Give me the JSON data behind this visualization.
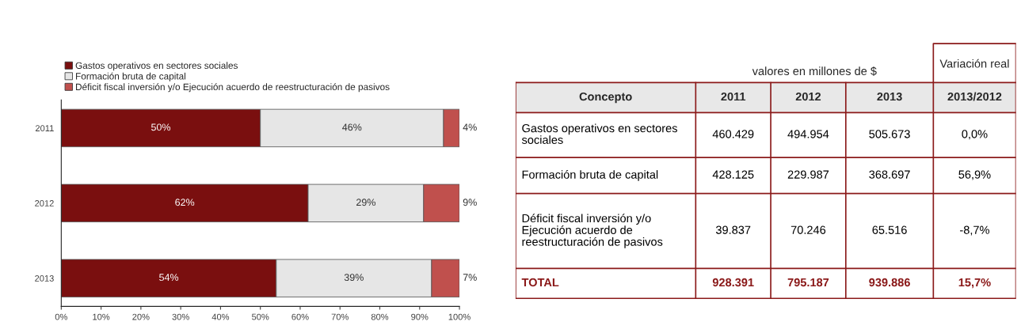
{
  "chart_data": [
    {
      "type": "bar",
      "orientation": "horizontal",
      "stacked": true,
      "categories": [
        "2011",
        "2012",
        "2013"
      ],
      "series": [
        {
          "name": "Gastos operativos en sectores sociales",
          "color": "#7a0f0f",
          "values": [
            50,
            62,
            54
          ],
          "value_labels": [
            "50%",
            "62%",
            "54%"
          ]
        },
        {
          "name": "Formación bruta de capital",
          "color": "#e6e6e6",
          "values": [
            46,
            29,
            39
          ],
          "value_labels": [
            "46%",
            "29%",
            "39%"
          ]
        },
        {
          "name": "Déficit fiscal inversión y/o Ejecución acuerdo de reestructuración de pasivos",
          "color": "#c0504d",
          "values": [
            4,
            9,
            7
          ],
          "value_labels": [
            "4%",
            "9%",
            "7%"
          ]
        }
      ],
      "xlim": [
        0,
        100
      ],
      "xticks": [
        {
          "value": 0,
          "label": "0%"
        },
        {
          "value": 10,
          "label": "10%"
        },
        {
          "value": 20,
          "label": "20%"
        },
        {
          "value": 30,
          "label": "30%"
        },
        {
          "value": 40,
          "label": "40%"
        },
        {
          "value": 50,
          "label": "50%"
        },
        {
          "value": 60,
          "label": "60%"
        },
        {
          "value": 70,
          "label": "70%"
        },
        {
          "value": 80,
          "label": "80%"
        },
        {
          "value": 90,
          "label": "90%"
        },
        {
          "value": 100,
          "label": "100%"
        }
      ],
      "legend": "top left",
      "grid": false
    },
    {
      "type": "other",
      "title": "valores en millones de $",
      "annotations": [
        "Variación real"
      ],
      "categories": [
        "Concepto",
        "2011",
        "2012",
        "2013",
        "2013/2012"
      ],
      "y_categories": [
        "Gastos operativos en sectores sociales",
        "Formación bruta de capital",
        "Déficit fiscal inversión y/o Ejecución acuerdo de reestructuración de pasivos",
        "TOTAL"
      ],
      "cell_labels": [
        [
          "460.429",
          "494.954",
          "505.673",
          "0,0%"
        ],
        [
          "428.125",
          "229.987",
          "368.697",
          "56,9%"
        ],
        [
          "39.837",
          "70.246",
          "65.516",
          "-8,7%"
        ],
        [
          "928.391",
          "795.187",
          "939.886",
          "15,7%"
        ]
      ]
    }
  ]
}
